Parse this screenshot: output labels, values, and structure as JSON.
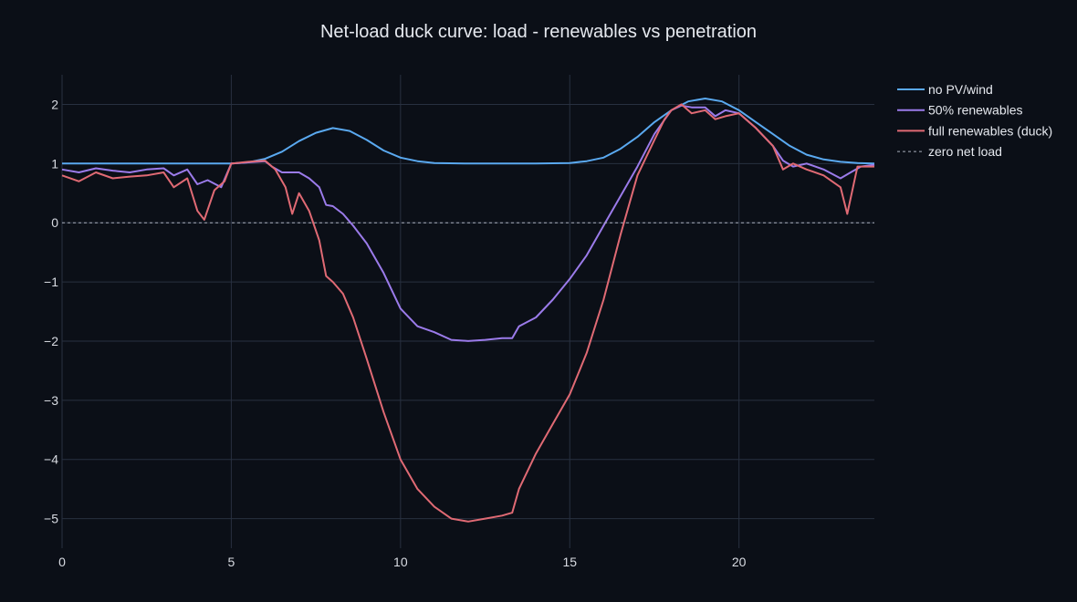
{
  "chart_data": {
    "type": "line",
    "title": "Net-load duck curve: load - renewables vs penetration",
    "xlabel": "",
    "ylabel": "",
    "xlim": [
      0,
      24
    ],
    "ylim": [
      -5.5,
      2.5
    ],
    "x_ticks": [
      0,
      5,
      10,
      15,
      20
    ],
    "y_ticks": [
      2,
      1,
      0,
      -1,
      -2,
      -3,
      -4,
      -5
    ],
    "x_tick_labels": [
      "0",
      "5",
      "10",
      "15",
      "20"
    ],
    "y_tick_labels": [
      "2",
      "1",
      "0",
      "−1",
      "−2",
      "−3",
      "−4",
      "−5"
    ],
    "grid": true,
    "legend_position": "top-right (outside plot)",
    "series": [
      {
        "name": "no PV/wind",
        "color": "#5aa9f0",
        "dash": "solid",
        "x": [
          0,
          1,
          2,
          3,
          4,
          5,
          5.5,
          6,
          6.5,
          7,
          7.5,
          8,
          8.5,
          9,
          9.5,
          10,
          10.5,
          11,
          12,
          13,
          14,
          15,
          15.5,
          16,
          16.5,
          17,
          17.5,
          18,
          18.5,
          19,
          19.5,
          20,
          20.5,
          21,
          21.5,
          22,
          22.5,
          23,
          23.5,
          24
        ],
        "y": [
          1.0,
          1.0,
          1.0,
          1.0,
          1.0,
          1.0,
          1.02,
          1.08,
          1.2,
          1.38,
          1.52,
          1.6,
          1.55,
          1.4,
          1.22,
          1.1,
          1.04,
          1.01,
          1.0,
          1.0,
          1.0,
          1.01,
          1.04,
          1.1,
          1.25,
          1.45,
          1.7,
          1.9,
          2.05,
          2.1,
          2.05,
          1.9,
          1.7,
          1.5,
          1.3,
          1.15,
          1.07,
          1.03,
          1.01,
          1.0
        ]
      },
      {
        "name": "50% renewables",
        "color": "#9b7bea",
        "dash": "solid",
        "x": [
          0,
          0.5,
          1,
          1.5,
          2,
          2.5,
          3,
          3.3,
          3.7,
          4,
          4.3,
          4.7,
          5,
          5.5,
          6,
          6.2,
          6.5,
          7,
          7.3,
          7.6,
          7.8,
          8,
          8.3,
          8.6,
          9,
          9.5,
          10,
          10.5,
          11,
          11.5,
          12,
          12.5,
          13,
          13.3,
          13.5,
          14,
          14.5,
          15,
          15.5,
          16,
          16.5,
          17,
          17.5,
          18,
          18.3,
          18.6,
          19,
          19.3,
          19.6,
          20,
          20.5,
          21,
          21.3,
          21.6,
          22,
          22.5,
          23,
          23.3,
          23.6,
          24
        ],
        "y": [
          0.9,
          0.85,
          0.92,
          0.88,
          0.85,
          0.9,
          0.92,
          0.8,
          0.9,
          0.65,
          0.72,
          0.6,
          1.0,
          1.02,
          1.04,
          0.95,
          0.85,
          0.85,
          0.75,
          0.6,
          0.3,
          0.28,
          0.15,
          -0.05,
          -0.35,
          -0.85,
          -1.45,
          -1.75,
          -1.85,
          -1.98,
          -2.0,
          -1.98,
          -1.95,
          -1.95,
          -1.75,
          -1.6,
          -1.3,
          -0.95,
          -0.55,
          -0.05,
          0.45,
          0.95,
          1.5,
          1.9,
          1.98,
          1.95,
          1.95,
          1.8,
          1.9,
          1.85,
          1.6,
          1.3,
          1.05,
          0.95,
          1.0,
          0.9,
          0.75,
          0.85,
          0.95,
          0.98
        ]
      },
      {
        "name": "full renewables (duck)",
        "color": "#e06a74",
        "dash": "solid",
        "x": [
          0,
          0.5,
          1,
          1.5,
          2,
          2.5,
          3,
          3.3,
          3.7,
          4,
          4.2,
          4.5,
          4.8,
          5,
          5.5,
          6,
          6.3,
          6.6,
          6.8,
          7,
          7.3,
          7.6,
          7.8,
          8,
          8.3,
          8.6,
          9,
          9.5,
          10,
          10.5,
          11,
          11.5,
          12,
          12.5,
          13,
          13.3,
          13.5,
          14,
          14.5,
          15,
          15.5,
          16,
          16.5,
          17,
          17.5,
          17.8,
          18,
          18.3,
          18.6,
          19,
          19.3,
          19.6,
          20,
          20.5,
          21,
          21.3,
          21.6,
          22,
          22.5,
          23,
          23.2,
          23.5,
          24
        ],
        "y": [
          0.8,
          0.7,
          0.85,
          0.75,
          0.78,
          0.8,
          0.85,
          0.6,
          0.75,
          0.2,
          0.05,
          0.55,
          0.7,
          1.0,
          1.03,
          1.05,
          0.9,
          0.6,
          0.15,
          0.5,
          0.2,
          -0.3,
          -0.9,
          -1.0,
          -1.2,
          -1.6,
          -2.3,
          -3.2,
          -4.0,
          -4.5,
          -4.8,
          -5.0,
          -5.05,
          -5.0,
          -4.95,
          -4.9,
          -4.5,
          -3.9,
          -3.4,
          -2.9,
          -2.2,
          -1.3,
          -0.2,
          0.8,
          1.4,
          1.75,
          1.9,
          2.0,
          1.85,
          1.9,
          1.75,
          1.8,
          1.85,
          1.6,
          1.3,
          0.9,
          1.0,
          0.9,
          0.8,
          0.6,
          0.15,
          0.95,
          0.95
        ]
      },
      {
        "name": "zero net load",
        "color": "#a9afbb",
        "dash": "dotted",
        "x": [
          0,
          24
        ],
        "y": [
          0,
          0
        ]
      }
    ]
  }
}
